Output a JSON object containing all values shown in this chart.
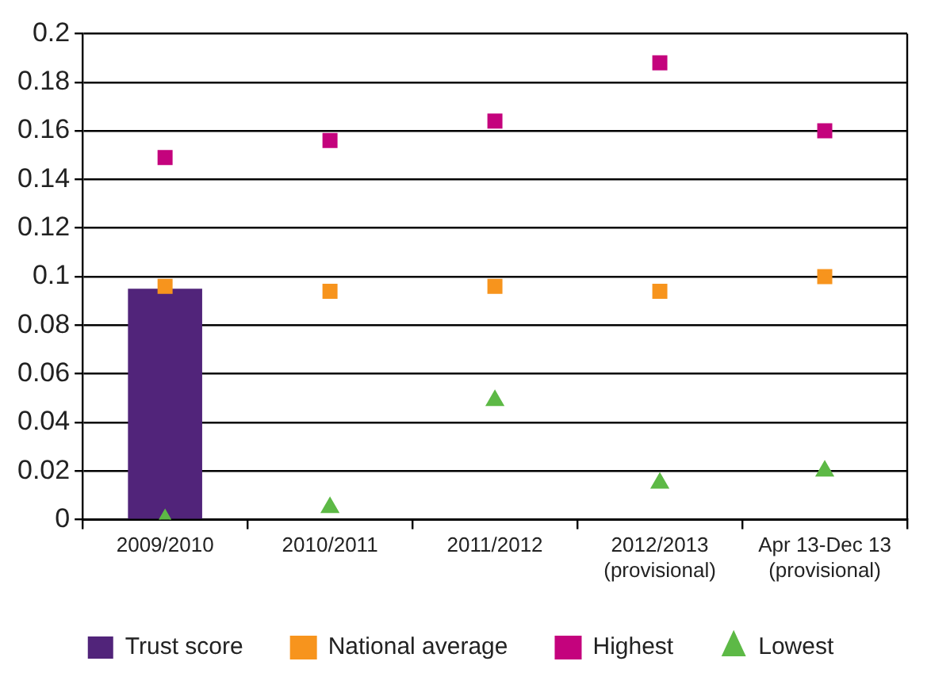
{
  "chart_data": {
    "type": "bar",
    "categories": [
      "2009/2010",
      "2010/2011",
      "2011/2012",
      "2012/2013 (provisional)",
      "Apr 13-Dec 13 (provisional)"
    ],
    "series": [
      {
        "name": "Trust score",
        "color": "#51247a",
        "values": [
          0.095,
          null,
          null,
          null,
          null
        ]
      },
      {
        "name": "National average",
        "type": "scatter",
        "marker": "square",
        "color": "#f7941d",
        "values": [
          0.096,
          0.094,
          0.096,
          0.094,
          0.1
        ]
      },
      {
        "name": "Highest",
        "type": "scatter",
        "marker": "square",
        "color": "#c4037d",
        "values": [
          0.149,
          0.156,
          0.164,
          0.188,
          0.16
        ]
      },
      {
        "name": "Lowest",
        "type": "scatter",
        "marker": "triangle",
        "color": "#5db946",
        "values": [
          0,
          0.005,
          0.049,
          0.015,
          0.02
        ]
      }
    ],
    "ylim": [
      0,
      0.2
    ],
    "yticks": [
      0,
      0.02,
      0.04,
      0.06,
      0.08,
      0.1,
      0.12,
      0.14,
      0.16,
      0.18,
      0.2
    ],
    "grid": "y",
    "legend": "bottom"
  }
}
